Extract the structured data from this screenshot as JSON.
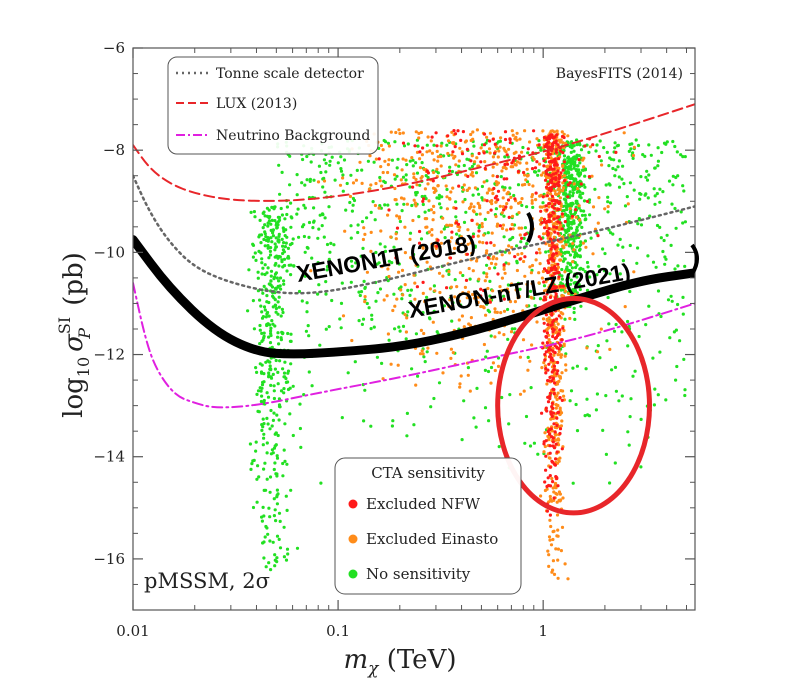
{
  "chart_data": {
    "type": "scatter",
    "title": "",
    "source_label": "BayesFITS (2014)",
    "corner_label": "pMSSM, 2σ",
    "xlabel": {
      "main": "m",
      "sub": "χ",
      "unit": " (TeV)"
    },
    "ylabel": {
      "prefix": "log",
      "sub": "10",
      "sigma": "σ",
      "sup": "SI",
      "subP": "P",
      "unit": " (pb)"
    },
    "x_scale": "log",
    "xlim": [
      0.01,
      5.5
    ],
    "ylim": [
      -17,
      -6
    ],
    "x_ticks": [
      {
        "value": 0.01,
        "label": "0.01"
      },
      {
        "value": 0.1,
        "label": "0.1"
      },
      {
        "value": 1,
        "label": "1"
      }
    ],
    "y_ticks": [
      {
        "value": -6,
        "label": "−6"
      },
      {
        "value": -8,
        "label": "−8"
      },
      {
        "value": -10,
        "label": "−10"
      },
      {
        "value": -12,
        "label": "−12"
      },
      {
        "value": -14,
        "label": "−14"
      },
      {
        "value": -16,
        "label": "−16"
      }
    ],
    "curves": [
      {
        "name": "Tonne scale detector",
        "style": "dotted",
        "color": "#666666",
        "points": [
          [
            0.01,
            -8.5
          ],
          [
            0.012,
            -9.2
          ],
          [
            0.015,
            -9.8
          ],
          [
            0.02,
            -10.3
          ],
          [
            0.03,
            -10.6
          ],
          [
            0.05,
            -10.8
          ],
          [
            0.08,
            -10.8
          ],
          [
            0.15,
            -10.6
          ],
          [
            0.3,
            -10.3
          ],
          [
            0.6,
            -10.0
          ],
          [
            1.2,
            -9.75
          ],
          [
            2.5,
            -9.45
          ],
          [
            5.5,
            -9.1
          ]
        ]
      },
      {
        "name": "LUX (2013)",
        "style": "dashed",
        "color": "#e8262a",
        "points": [
          [
            0.01,
            -7.9
          ],
          [
            0.012,
            -8.35
          ],
          [
            0.015,
            -8.65
          ],
          [
            0.02,
            -8.85
          ],
          [
            0.03,
            -8.98
          ],
          [
            0.05,
            -9.0
          ],
          [
            0.08,
            -8.95
          ],
          [
            0.15,
            -8.8
          ],
          [
            0.3,
            -8.55
          ],
          [
            0.6,
            -8.25
          ],
          [
            1.2,
            -7.95
          ],
          [
            2.5,
            -7.55
          ],
          [
            5.5,
            -7.1
          ]
        ]
      },
      {
        "name": "Neutrino Background",
        "style": "dashdot",
        "color": "#e020e0",
        "points": [
          [
            0.01,
            -10.6
          ],
          [
            0.0115,
            -11.7
          ],
          [
            0.013,
            -12.3
          ],
          [
            0.016,
            -12.8
          ],
          [
            0.02,
            -12.95
          ],
          [
            0.025,
            -13.05
          ],
          [
            0.04,
            -13.0
          ],
          [
            0.08,
            -12.75
          ],
          [
            0.2,
            -12.45
          ],
          [
            0.5,
            -12.1
          ],
          [
            1.0,
            -11.85
          ],
          [
            2.0,
            -11.55
          ],
          [
            5.5,
            -11.0
          ]
        ]
      },
      {
        "name": "XENON-nT/LZ (2021)",
        "style": "thick",
        "color": "#000000",
        "points": [
          [
            0.01,
            -9.75
          ],
          [
            0.015,
            -10.7
          ],
          [
            0.025,
            -11.55
          ],
          [
            0.04,
            -11.95
          ],
          [
            0.06,
            -12.0
          ],
          [
            0.1,
            -11.95
          ],
          [
            0.2,
            -11.85
          ],
          [
            0.4,
            -11.6
          ],
          [
            0.8,
            -11.25
          ],
          [
            1.5,
            -10.9
          ],
          [
            3,
            -10.55
          ],
          [
            5.5,
            -10.4
          ]
        ]
      }
    ],
    "legend_top": {
      "placement": "top-left",
      "entries": [
        {
          "label": "Tonne scale detector",
          "style": "dotted",
          "color": "#666666"
        },
        {
          "label": "LUX (2013)",
          "style": "dashed",
          "color": "#e8262a"
        },
        {
          "label": "Neutrino Background",
          "style": "dashdot",
          "color": "#e020e0"
        }
      ]
    },
    "legend_bottom": {
      "placement": "bottom-center",
      "title": "CTA sensitivity",
      "entries": [
        {
          "label": "Excluded NFW",
          "color": "#ff1a1a"
        },
        {
          "label": "Excluded Einasto",
          "color": "#ff8c1a"
        },
        {
          "label": "No sensitivity",
          "color": "#22e022"
        }
      ]
    },
    "series": [
      {
        "name": "No sensitivity",
        "color": "#22e022"
      },
      {
        "name": "Excluded Einasto",
        "color": "#ff8c1a"
      },
      {
        "name": "Excluded NFW",
        "color": "#ff1a1a"
      }
    ],
    "point_clusters": [
      {
        "series": "No sensitivity",
        "x_range": [
          0.035,
          0.065
        ],
        "y_range": [
          -16.3,
          -9.1
        ]
      },
      {
        "series": "No sensitivity",
        "x_range": [
          0.05,
          5.0
        ],
        "y_range": [
          -15.7,
          -7.8
        ]
      },
      {
        "series": "No sensitivity",
        "x_range": [
          1.1,
          1.7
        ],
        "y_range": [
          -11.5,
          -7.8
        ]
      },
      {
        "series": "Excluded Einasto",
        "x_range": [
          0.06,
          4.0
        ],
        "y_range": [
          -12.8,
          -7.6
        ]
      },
      {
        "series": "Excluded Einasto",
        "x_range": [
          0.95,
          1.35
        ],
        "y_range": [
          -16.5,
          -7.6
        ]
      },
      {
        "series": "Excluded NFW",
        "x_range": [
          0.1,
          3.5
        ],
        "y_range": [
          -11.2,
          -7.6
        ]
      },
      {
        "series": "Excluded NFW",
        "x_range": [
          0.95,
          1.3
        ],
        "y_range": [
          -15.4,
          -7.7
        ]
      }
    ],
    "annotations": [
      {
        "text": "XENON1T (2018)",
        "anchor": [
          0.065,
          -10.35
        ]
      },
      {
        "text": "XENON-nT/LZ (2021)",
        "anchor": [
          0.16,
          -11.35
        ]
      },
      {
        "type": "ellipse",
        "color": "#e8262a",
        "center": [
          1.45,
          -13.1
        ],
        "x_span": [
          0.6,
          3.3
        ],
        "y_span": [
          -15.1,
          -10.9
        ]
      }
    ]
  }
}
